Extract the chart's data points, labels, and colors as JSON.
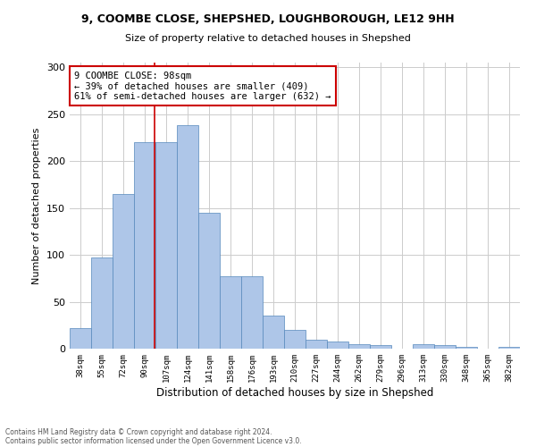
{
  "title_line1": "9, COOMBE CLOSE, SHEPSHED, LOUGHBOROUGH, LE12 9HH",
  "title_line2": "Size of property relative to detached houses in Shepshed",
  "xlabel": "Distribution of detached houses by size in Shepshed",
  "ylabel": "Number of detached properties",
  "categories": [
    "38sqm",
    "55sqm",
    "72sqm",
    "90sqm",
    "107sqm",
    "124sqm",
    "141sqm",
    "158sqm",
    "176sqm",
    "193sqm",
    "210sqm",
    "227sqm",
    "244sqm",
    "262sqm",
    "279sqm",
    "296sqm",
    "313sqm",
    "330sqm",
    "348sqm",
    "365sqm",
    "382sqm"
  ],
  "values": [
    22,
    97,
    165,
    220,
    220,
    238,
    145,
    77,
    77,
    35,
    20,
    10,
    8,
    5,
    4,
    0,
    5,
    4,
    2,
    0,
    2
  ],
  "bar_color": "#aec6e8",
  "bar_edge_color": "#5588bb",
  "property_line_x": 3.47,
  "annotation_text": "9 COOMBE CLOSE: 98sqm\n← 39% of detached houses are smaller (409)\n61% of semi-detached houses are larger (632) →",
  "annotation_box_color": "#ffffff",
  "annotation_box_edge": "#cc0000",
  "vline_color": "#cc0000",
  "ylim": [
    0,
    305
  ],
  "yticks": [
    0,
    50,
    100,
    150,
    200,
    250,
    300
  ],
  "grid_color": "#cccccc",
  "background_color": "#ffffff",
  "footer_line1": "Contains HM Land Registry data © Crown copyright and database right 2024.",
  "footer_line2": "Contains public sector information licensed under the Open Government Licence v3.0."
}
